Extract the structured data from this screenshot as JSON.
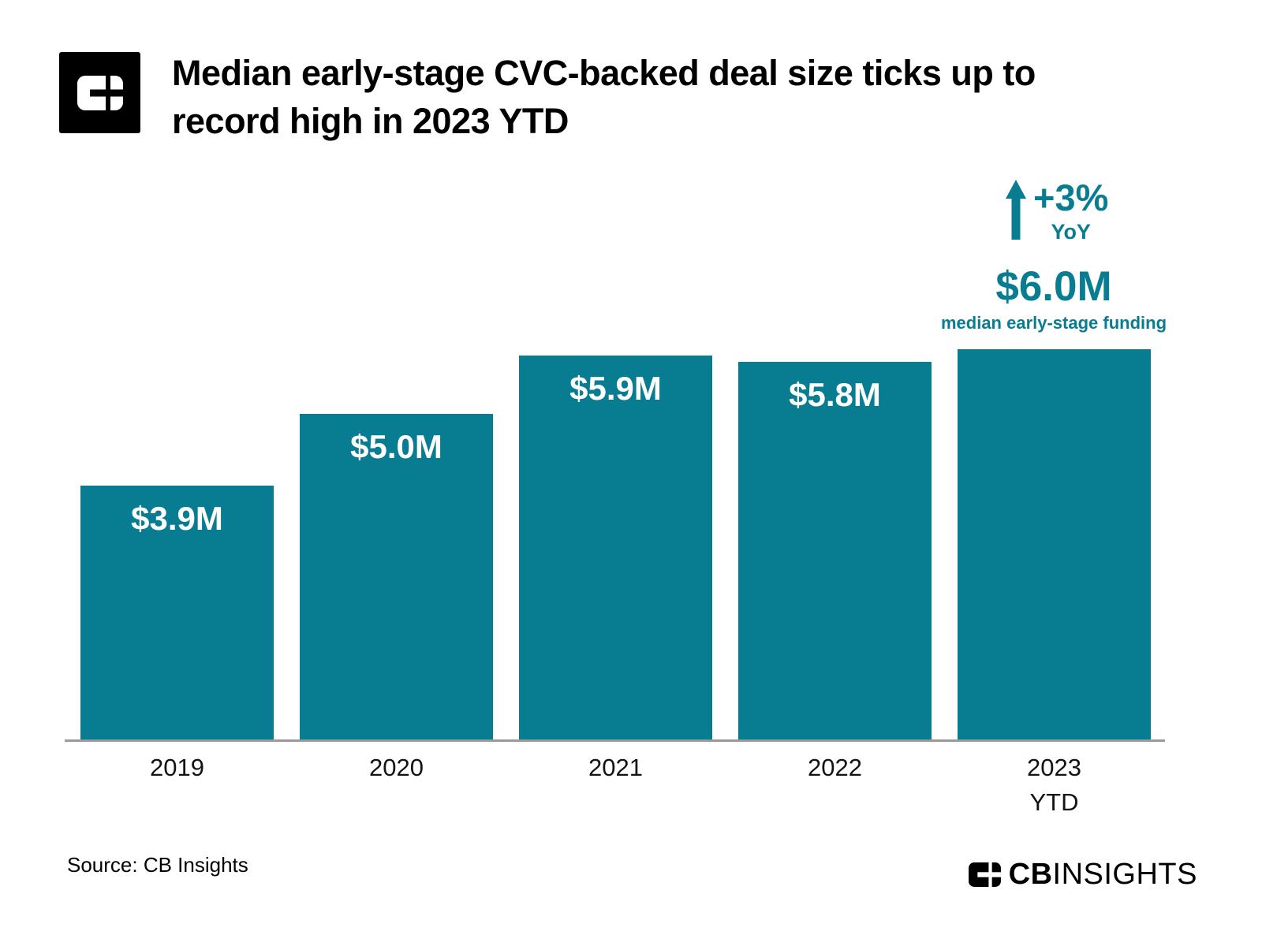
{
  "header": {
    "title_line1": "Median early-stage CVC-backed deal size ticks up to",
    "title_line2": "record high in 2023 YTD",
    "logo_icon": "cb-insights-logo-icon"
  },
  "chart_data": {
    "type": "bar",
    "title": "Median early-stage CVC-backed deal size ticks up to record high in 2023 YTD",
    "categories": [
      "2019",
      "2020",
      "2021",
      "2022",
      "2023"
    ],
    "category_sublabels": [
      "",
      "",
      "",
      "",
      "YTD"
    ],
    "values": [
      3.9,
      5.0,
      5.9,
      5.8,
      6.0
    ],
    "bar_labels": [
      "$3.9M",
      "$5.0M",
      "$5.9M",
      "$5.8M",
      ""
    ],
    "ylim": [
      0,
      6.05
    ],
    "grid": false,
    "legend": "none",
    "bar_color": "#087d91",
    "bar_label_color": "#ffffff",
    "annotation_color": "#087d91",
    "axis_line_color": "#9a9a9a",
    "annotations": {
      "yoy_change": "+3%",
      "yoy_sublabel": "YoY",
      "arrow_icon": "up-arrow-icon",
      "value": "$6.0M",
      "value_sublabel": "median early-stage funding"
    }
  },
  "footer": {
    "source": "Source: CB Insights",
    "brand_icon": "cb-insights-logo-icon",
    "brand_bold": "CB",
    "brand_light": "INSIGHTS"
  }
}
